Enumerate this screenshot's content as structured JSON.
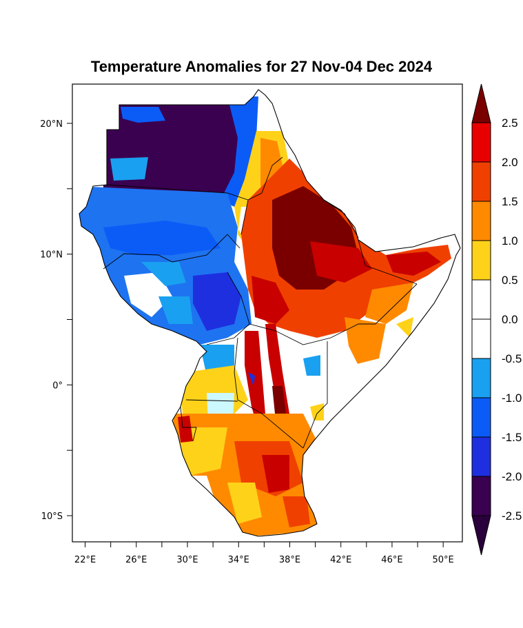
{
  "title": "Temperature Anomalies for 27 Nov-04 Dec 2024",
  "map": {
    "lon_range": [
      21,
      51.5
    ],
    "lat_range": [
      -12,
      23
    ],
    "x_ticks": [
      {
        "lon": 22,
        "label": "22°E"
      },
      {
        "lon": 26,
        "label": "26°E"
      },
      {
        "lon": 30,
        "label": "30°E"
      },
      {
        "lon": 34,
        "label": "34°E"
      },
      {
        "lon": 38,
        "label": "38°E"
      },
      {
        "lon": 42,
        "label": "42°E"
      },
      {
        "lon": 46,
        "label": "46°E"
      },
      {
        "lon": 50,
        "label": "50°E"
      }
    ],
    "y_ticks": [
      {
        "lat": 20,
        "label": "20°N"
      },
      {
        "lat": 10,
        "label": "10°N"
      },
      {
        "lat": 0,
        "label": "0°"
      },
      {
        "lat": -10,
        "label": "10°S"
      }
    ],
    "colors": {
      "strong_cold": "#3a0150",
      "cold": "#1e2fe0",
      "moderate_cold": "#0b5cf7",
      "mild_cold": "#1aa0f0",
      "neutral": "#ffffff",
      "mild_warm": "#ffd21a",
      "warm": "#ff8a00",
      "hot": "#f04000",
      "very_hot": "#c80000",
      "extreme_hot": "#7a0000"
    }
  },
  "colorbar": {
    "levels": [
      "2.5",
      "2.0",
      "1.5",
      "1.0",
      "0.5",
      "0.0",
      "-0.5",
      "-1.0",
      "-1.5",
      "-2.0",
      "-2.5"
    ],
    "colors": [
      "#7a0000",
      "#e80000",
      "#f04000",
      "#ff8a00",
      "#ffd21a",
      "#ffffff",
      "#ffffff",
      "#1aa0f0",
      "#0b5cf7",
      "#1e2fe0",
      "#3a0150",
      "#2a003c"
    ]
  }
}
